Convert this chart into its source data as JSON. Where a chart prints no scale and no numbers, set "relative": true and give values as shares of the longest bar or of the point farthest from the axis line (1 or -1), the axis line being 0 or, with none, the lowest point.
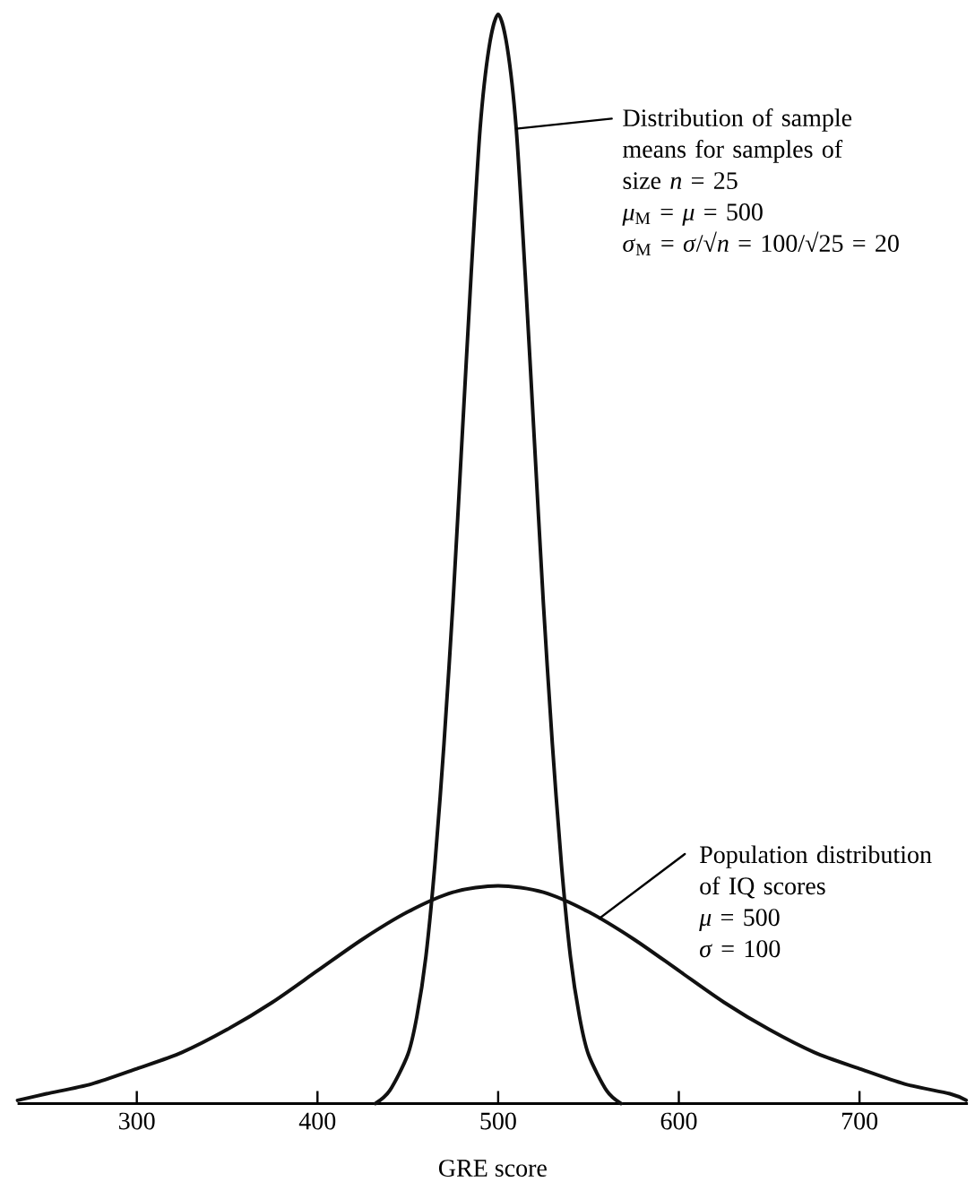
{
  "chart_data": {
    "type": "line",
    "relative": true,
    "xlabel": "GRE score",
    "xlim": [
      234,
      760
    ],
    "xticks": [
      300,
      400,
      500,
      600,
      700
    ],
    "line_style": "solid",
    "series": [
      {
        "color": "#111111",
        "x": [
          432,
          440,
          450,
          455,
          460,
          465,
          470,
          475,
          480,
          485,
          490,
          495,
          500,
          505,
          510,
          515,
          520,
          525,
          530,
          535,
          540,
          545,
          550,
          560,
          568
        ],
        "values": [
          0,
          0.012,
          0.045,
          0.08,
          0.135,
          0.22,
          0.33,
          0.46,
          0.61,
          0.76,
          0.895,
          0.97,
          1,
          0.97,
          0.895,
          0.76,
          0.61,
          0.46,
          0.33,
          0.22,
          0.135,
          0.08,
          0.045,
          0.012,
          0
        ]
      },
      {
        "color": "#111111",
        "x": [
          234,
          250,
          275,
          300,
          325,
          350,
          375,
          400,
          425,
          450,
          475,
          500,
          525,
          550,
          575,
          600,
          625,
          650,
          675,
          700,
          725,
          750,
          759
        ],
        "values": [
          0.003,
          0.009,
          0.018,
          0.032,
          0.047,
          0.068,
          0.093,
          0.122,
          0.151,
          0.176,
          0.194,
          0.2,
          0.194,
          0.176,
          0.151,
          0.122,
          0.093,
          0.068,
          0.047,
          0.032,
          0.018,
          0.009,
          0.003
        ]
      }
    ],
    "annotations": [
      {
        "text": "Distribution of sample means for samples of size *n* = 25",
        "x": 510,
        "y": 0.895
      },
      "*μ*$_{M}$ = *μ* = 500",
      "*σ*$_{M}$ = *σ*/√*n* = 100/√25 = 20",
      {
        "text": "Population distribution of IQ scores",
        "x": 556,
        "y": 0.17
      },
      "*μ* = 500",
      "*σ* = 100"
    ]
  }
}
